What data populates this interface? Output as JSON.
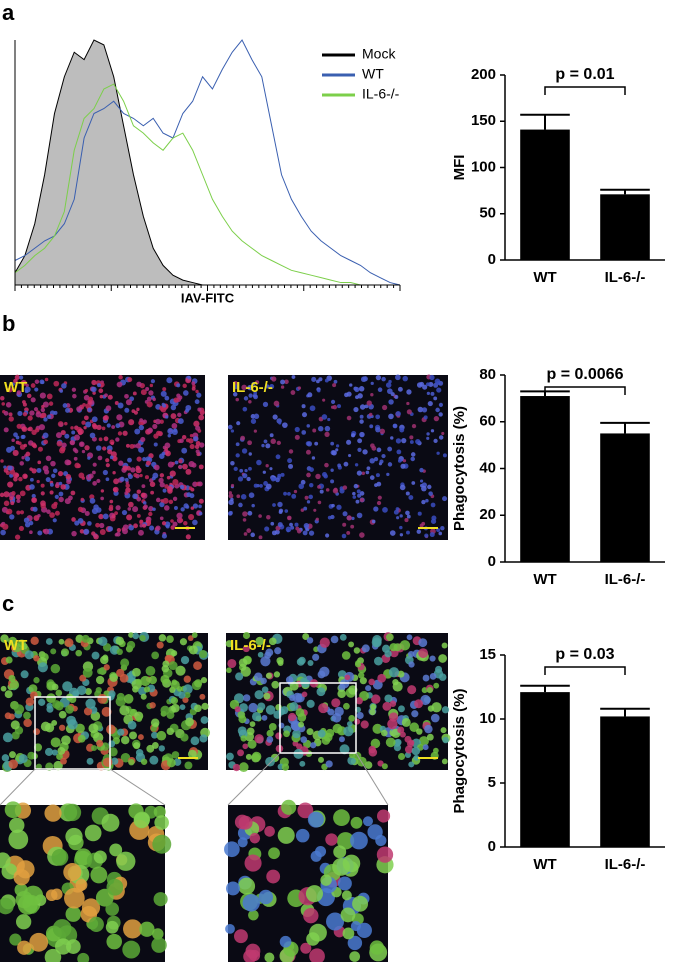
{
  "panels": [
    "a",
    "b",
    "c"
  ],
  "micrographs": [
    "WT",
    "IL-6-/-",
    "WT",
    "IL-6-/-"
  ],
  "chart_data": [
    {
      "type": "line",
      "xlabel": "IAV-FITC",
      "legend": "top-right",
      "categories": [
        null,
        null,
        null,
        null,
        null,
        null,
        null,
        null,
        null,
        null,
        null,
        null,
        null,
        null,
        null,
        null,
        null,
        null,
        null,
        null,
        null,
        null,
        null,
        null,
        null,
        null,
        null,
        null,
        null,
        null,
        null,
        null,
        null,
        null,
        null,
        null,
        null,
        null,
        null,
        null
      ],
      "ylim": [
        0,
        100
      ],
      "series": [
        {
          "name": "Mock",
          "color": "#000000",
          "fill": "#bdbdbd",
          "values": [
            5,
            12,
            25,
            45,
            70,
            85,
            95,
            92,
            100,
            98,
            85,
            65,
            45,
            28,
            15,
            8,
            4,
            2,
            1,
            0,
            0,
            0,
            0,
            0,
            0,
            0,
            0,
            0,
            0,
            0,
            0,
            0,
            0,
            0,
            0,
            0,
            0,
            0,
            0,
            0
          ]
        },
        {
          "name": "WT",
          "color": "#3a5fb0",
          "values": [
            10,
            12,
            15,
            18,
            20,
            25,
            35,
            60,
            70,
            72,
            75,
            70,
            68,
            65,
            68,
            62,
            60,
            70,
            75,
            85,
            80,
            88,
            95,
            100,
            92,
            85,
            65,
            45,
            35,
            28,
            22,
            18,
            15,
            12,
            10,
            8,
            5,
            3,
            1,
            0
          ]
        },
        {
          "name": "IL-6-/-",
          "color": "#7ccf4a",
          "values": [
            5,
            8,
            12,
            15,
            20,
            30,
            55,
            68,
            72,
            80,
            82,
            75,
            65,
            62,
            58,
            55,
            60,
            62,
            55,
            45,
            35,
            28,
            22,
            18,
            15,
            12,
            10,
            8,
            6,
            5,
            4,
            3,
            2,
            1,
            1,
            0,
            0,
            0,
            0,
            0
          ]
        }
      ]
    },
    {
      "type": "bar",
      "ylabel": "MFI",
      "annotation": "p = 0.01",
      "categories": [
        "WT",
        "IL-6-/-"
      ],
      "values": [
        141,
        71
      ],
      "errors": [
        16,
        5
      ],
      "color": "#000000",
      "ylim": [
        0,
        200
      ],
      "yticks": [
        0,
        50,
        100,
        150,
        200
      ]
    },
    {
      "type": "bar",
      "ylabel": "Phagocytosis (%)",
      "annotation": "p = 0.0066",
      "categories": [
        "WT",
        "IL-6-/-"
      ],
      "values": [
        71,
        55
      ],
      "errors": [
        2,
        4.5
      ],
      "color": "#000000",
      "ylim": [
        0,
        80
      ],
      "yticks": [
        0,
        20,
        40,
        60,
        80
      ]
    },
    {
      "type": "bar",
      "ylabel": "Phagocytosis (%)",
      "annotation": "p = 0.03",
      "categories": [
        "WT",
        "IL-6-/-"
      ],
      "values": [
        12.1,
        10.2
      ],
      "errors": [
        0.5,
        0.6
      ],
      "color": "#000000",
      "ylim": [
        0,
        15
      ],
      "yticks": [
        0,
        5,
        10,
        15
      ]
    }
  ]
}
